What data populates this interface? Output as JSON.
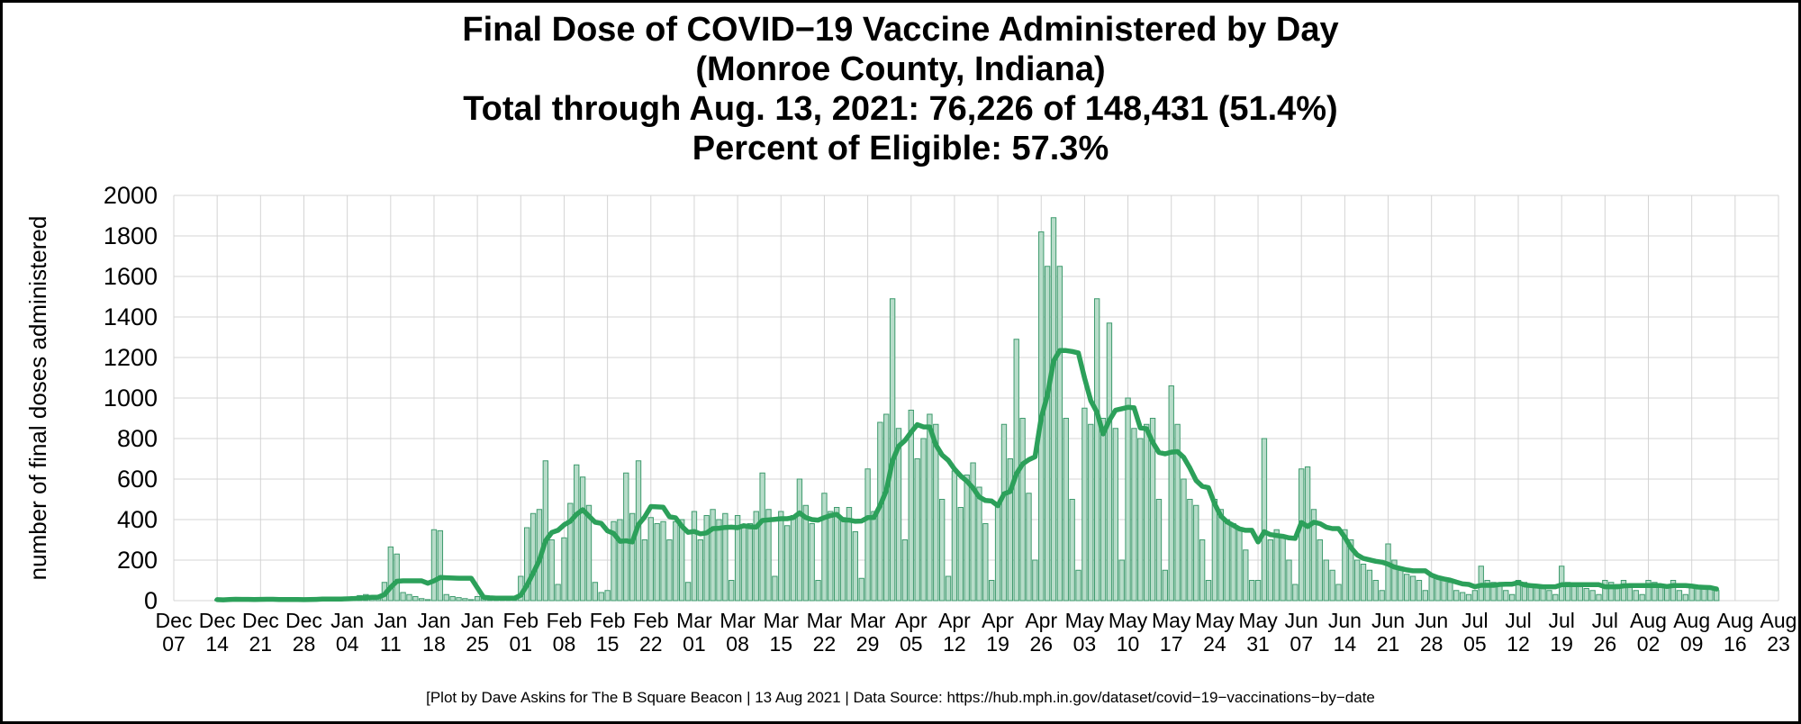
{
  "title": {
    "line1": "Final Dose of COVID−19 Vaccine Administered by Day",
    "line2": "(Monroe County, Indiana)",
    "line3": "Total through Aug. 13, 2021: 76,226 of 148,431 (51.4%)",
    "line4": "Percent of Eligible: 57.3%"
  },
  "footer": "[Plot by Dave Askins for The B Square Beacon | 13 Aug 2021 | Data Source: https://hub.mph.in.gov/dataset/covid−19−vaccinations−by−date",
  "chart_data": {
    "type": "bar",
    "title": "Final Dose of COVID−19 Vaccine Administered by Day (Monroe County, Indiana)",
    "xlabel": "",
    "ylabel": "number of final doses administered",
    "ylim": [
      0,
      2000
    ],
    "y_ticks": [
      0,
      200,
      400,
      600,
      800,
      1000,
      1200,
      1400,
      1600,
      1800,
      2000
    ],
    "grid": true,
    "legend": "none",
    "x_tick_labels": [
      "Dec 07",
      "Dec 14",
      "Dec 21",
      "Dec 28",
      "Jan 04",
      "Jan 11",
      "Jan 18",
      "Jan 25",
      "Feb 01",
      "Feb 08",
      "Feb 15",
      "Feb 22",
      "Mar 01",
      "Mar 08",
      "Mar 15",
      "Mar 22",
      "Mar 29",
      "Apr 05",
      "Apr 12",
      "Apr 19",
      "Apr 26",
      "May 03",
      "May 10",
      "May 17",
      "May 24",
      "May 31",
      "Jun 07",
      "Jun 14",
      "Jun 21",
      "Jun 28",
      "Jul 05",
      "Jul 12",
      "Jul 19",
      "Jul 26",
      "Aug 02",
      "Aug 09",
      "Aug 16",
      "Aug 23"
    ],
    "days_per_tick": 7,
    "x_axis_total_days": 259,
    "series_start_label": "Dec 14",
    "series_end_label": "Aug 13",
    "first_day_offset": 7,
    "overlay_line": "7-day rolling average",
    "bar_fill": "#b7dcc9",
    "bar_stroke": "#3f9b6e",
    "line_color": "#2ca05a",
    "grid_color": "#d4d4d4",
    "daily_values": [
      5,
      3,
      8,
      10,
      6,
      4,
      2,
      10,
      8,
      6,
      5,
      3,
      2,
      2,
      8,
      10,
      12,
      15,
      5,
      3,
      2,
      15,
      20,
      25,
      30,
      20,
      10,
      90,
      265,
      230,
      40,
      30,
      20,
      10,
      5,
      350,
      345,
      30,
      20,
      15,
      10,
      5,
      20,
      15,
      10,
      12,
      15,
      10,
      5,
      120,
      360,
      430,
      450,
      690,
      300,
      80,
      310,
      480,
      670,
      610,
      470,
      90,
      40,
      50,
      390,
      400,
      630,
      430,
      690,
      300,
      410,
      380,
      390,
      300,
      390,
      400,
      90,
      440,
      300,
      420,
      450,
      400,
      430,
      100,
      420,
      370,
      380,
      440,
      630,
      450,
      120,
      440,
      370,
      420,
      600,
      470,
      380,
      100,
      530,
      440,
      460,
      410,
      460,
      340,
      110,
      650,
      440,
      880,
      920,
      1490,
      850,
      300,
      940,
      700,
      800,
      920,
      870,
      500,
      120,
      640,
      460,
      620,
      680,
      560,
      380,
      100,
      480,
      870,
      700,
      1290,
      900,
      530,
      200,
      1820,
      1650,
      1890,
      1650,
      900,
      500,
      150,
      950,
      870,
      1490,
      900,
      1370,
      850,
      200,
      1000,
      850,
      800,
      870,
      900,
      500,
      150,
      1060,
      870,
      600,
      500,
      470,
      300,
      100,
      500,
      450,
      400,
      380,
      350,
      250,
      100,
      100,
      800,
      300,
      350,
      320,
      200,
      80,
      650,
      660,
      450,
      300,
      200,
      150,
      80,
      350,
      300,
      200,
      180,
      150,
      100,
      50,
      280,
      200,
      150,
      130,
      120,
      100,
      50,
      130,
      120,
      100,
      90,
      50,
      40,
      30,
      50,
      170,
      100,
      90,
      80,
      50,
      30,
      100,
      90,
      80,
      70,
      60,
      50,
      30,
      170,
      90,
      80,
      70,
      60,
      50,
      30,
      100,
      90,
      80,
      100,
      70,
      50,
      30,
      100,
      90,
      80,
      70,
      100,
      50,
      30,
      80,
      60,
      70,
      60,
      50
    ]
  }
}
